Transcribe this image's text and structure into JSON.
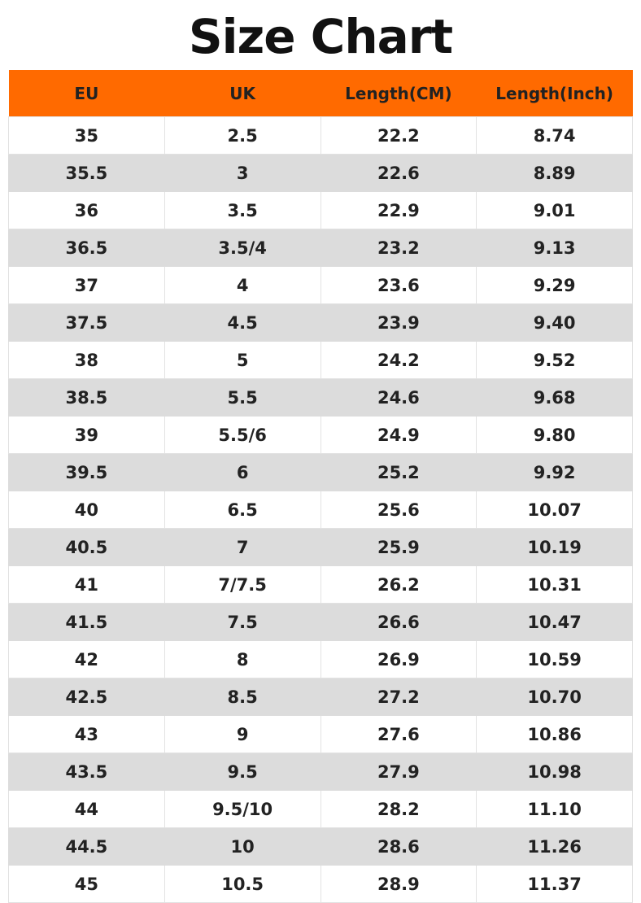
{
  "header": {
    "title": "Size Chart"
  },
  "table": {
    "columns": [
      "EU",
      "UK",
      "Length(CM)",
      "Length(Inch)"
    ],
    "rows": [
      [
        "35",
        "2.5",
        "22.2",
        "8.74"
      ],
      [
        "35.5",
        "3",
        "22.6",
        "8.89"
      ],
      [
        "36",
        "3.5",
        "22.9",
        "9.01"
      ],
      [
        "36.5",
        "3.5/4",
        "23.2",
        "9.13"
      ],
      [
        "37",
        "4",
        "23.6",
        "9.29"
      ],
      [
        "37.5",
        "4.5",
        "23.9",
        "9.40"
      ],
      [
        "38",
        "5",
        "24.2",
        "9.52"
      ],
      [
        "38.5",
        "5.5",
        "24.6",
        "9.68"
      ],
      [
        "39",
        "5.5/6",
        "24.9",
        "9.80"
      ],
      [
        "39.5",
        "6",
        "25.2",
        "9.92"
      ],
      [
        "40",
        "6.5",
        "25.6",
        "10.07"
      ],
      [
        "40.5",
        "7",
        "25.9",
        "10.19"
      ],
      [
        "41",
        "7/7.5",
        "26.2",
        "10.31"
      ],
      [
        "41.5",
        "7.5",
        "26.6",
        "10.47"
      ],
      [
        "42",
        "8",
        "26.9",
        "10.59"
      ],
      [
        "42.5",
        "8.5",
        "27.2",
        "10.70"
      ],
      [
        "43",
        "9",
        "27.6",
        "10.86"
      ],
      [
        "43.5",
        "9.5",
        "27.9",
        "10.98"
      ],
      [
        "44",
        "9.5/10",
        "28.2",
        "11.10"
      ],
      [
        "44.5",
        "10",
        "28.6",
        "11.26"
      ],
      [
        "45",
        "10.5",
        "28.9",
        "11.37"
      ]
    ]
  }
}
